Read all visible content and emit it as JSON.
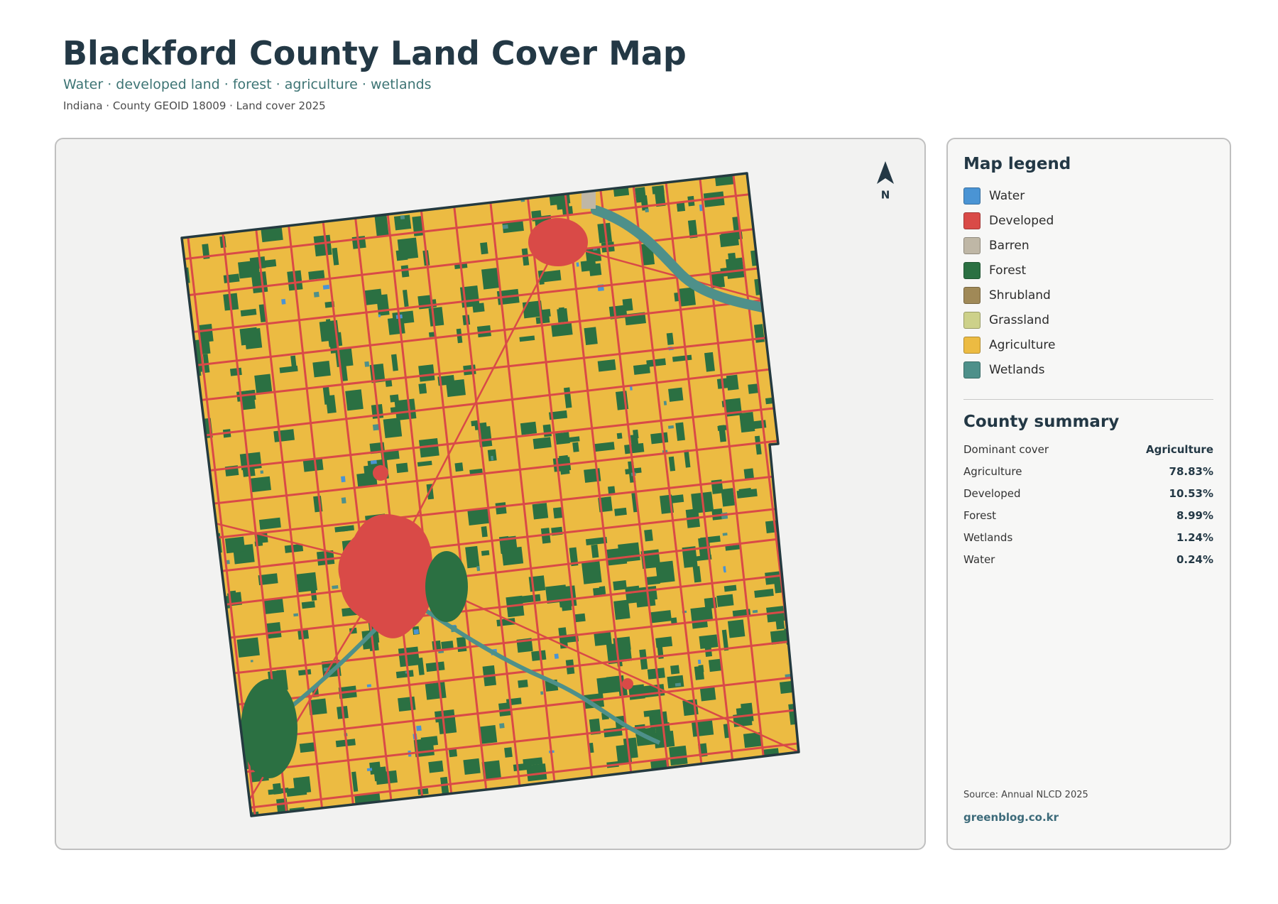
{
  "header": {
    "title": "Blackford County Land Cover Map",
    "subtitle": "Water · developed land · forest · agriculture · wetlands",
    "meta": "Indiana · County GEOID 18009 · Land cover 2025"
  },
  "map": {
    "north_label": "N"
  },
  "legend": {
    "title": "Map legend",
    "items": [
      {
        "label": "Water",
        "color": "#4a94d4"
      },
      {
        "label": "Developed",
        "color": "#d94a47"
      },
      {
        "label": "Barren",
        "color": "#bfb7a6"
      },
      {
        "label": "Forest",
        "color": "#2b7042"
      },
      {
        "label": "Shrubland",
        "color": "#a08957"
      },
      {
        "label": "Grassland",
        "color": "#cdd18a"
      },
      {
        "label": "Agriculture",
        "color": "#ecbb42"
      },
      {
        "label": "Wetlands",
        "color": "#4e908a"
      }
    ]
  },
  "summary": {
    "title": "County summary",
    "rows": [
      {
        "label": "Dominant cover",
        "value": "Agriculture"
      },
      {
        "label": "Agriculture",
        "value": "78.83%"
      },
      {
        "label": "Developed",
        "value": "10.53%"
      },
      {
        "label": "Forest",
        "value": "8.99%"
      },
      {
        "label": "Wetlands",
        "value": "1.24%"
      },
      {
        "label": "Water",
        "value": "0.24%"
      }
    ]
  },
  "footer": {
    "source": "Source: Annual NLCD 2025",
    "site": "greenblog.co.kr"
  }
}
